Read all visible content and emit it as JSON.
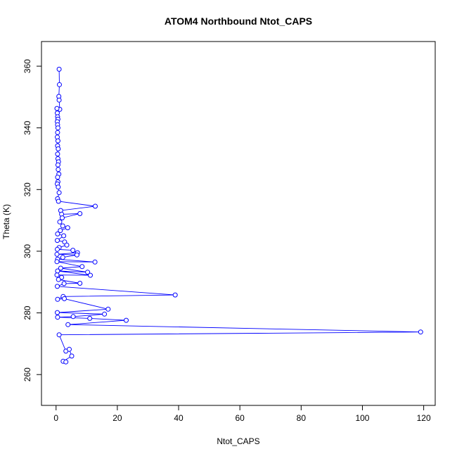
{
  "chart_data": {
    "type": "scatter",
    "title": "ATOM4 Northbound Ntot_CAPS",
    "xlabel": "Ntot_CAPS",
    "ylabel": "Theta (K)",
    "xlim": [
      -4.76,
      123.76
    ],
    "ylim": [
      250,
      368
    ],
    "x_ticks": [
      0,
      20,
      40,
      60,
      80,
      100,
      120
    ],
    "y_ticks": [
      260,
      280,
      300,
      320,
      340,
      360
    ],
    "x_tick_labels": [
      "0",
      "20",
      "40",
      "60",
      "80",
      "100",
      "120"
    ],
    "y_tick_labels": [
      "260",
      "280",
      "300",
      "320",
      "340",
      "360"
    ],
    "grid": false,
    "legend": "none",
    "series": [
      {
        "color": "#0000ff",
        "marker": "open-circle",
        "connected": true,
        "points": [
          [
            1.0,
            359.0
          ],
          [
            1.1,
            354.0
          ],
          [
            0.9,
            350.2
          ],
          [
            1.0,
            349.0
          ],
          [
            1.2,
            346.0
          ],
          [
            0.3,
            346.3
          ],
          [
            0.4,
            344.8
          ],
          [
            0.5,
            343.6
          ],
          [
            0.6,
            342.8
          ],
          [
            0.4,
            342.0
          ],
          [
            0.5,
            341.0
          ],
          [
            0.6,
            340.0
          ],
          [
            0.5,
            338.5
          ],
          [
            0.4,
            337.0
          ],
          [
            0.6,
            335.8
          ],
          [
            0.5,
            334.2
          ],
          [
            0.7,
            333.2
          ],
          [
            0.5,
            331.5
          ],
          [
            0.6,
            330.0
          ],
          [
            0.8,
            329.0
          ],
          [
            0.6,
            328.0
          ],
          [
            0.7,
            326.5
          ],
          [
            0.9,
            325.0
          ],
          [
            0.5,
            324.0
          ],
          [
            0.6,
            322.5
          ],
          [
            0.4,
            321.8
          ],
          [
            0.7,
            320.8
          ],
          [
            1.0,
            319.0
          ],
          [
            0.5,
            317.0
          ],
          [
            0.8,
            316.2
          ],
          [
            12.8,
            314.6
          ],
          [
            1.5,
            313.2
          ],
          [
            1.8,
            312.0
          ],
          [
            7.8,
            312.2
          ],
          [
            2.0,
            310.8
          ],
          [
            1.2,
            309.5
          ],
          [
            2.2,
            308.2
          ],
          [
            3.8,
            307.6
          ],
          [
            1.4,
            306.7
          ],
          [
            0.5,
            305.6
          ],
          [
            2.5,
            305.0
          ],
          [
            0.4,
            303.5
          ],
          [
            2.8,
            303.0
          ],
          [
            3.5,
            302.0
          ],
          [
            1.0,
            301.2
          ],
          [
            0.4,
            300.6
          ],
          [
            5.5,
            300.3
          ],
          [
            7.0,
            299.5
          ],
          [
            0.3,
            299.0
          ],
          [
            6.8,
            298.8
          ],
          [
            2.2,
            298.0
          ],
          [
            0.5,
            297.4
          ],
          [
            12.7,
            296.5
          ],
          [
            0.3,
            296.6
          ],
          [
            8.5,
            295.0
          ],
          [
            1.5,
            294.5
          ],
          [
            10.3,
            293.2
          ],
          [
            0.5,
            293.6
          ],
          [
            11.2,
            292.2
          ],
          [
            0.3,
            292.3
          ],
          [
            1.8,
            291.5
          ],
          [
            0.8,
            290.8
          ],
          [
            7.8,
            289.6
          ],
          [
            2.6,
            289.5
          ],
          [
            0.4,
            288.6
          ],
          [
            38.9,
            285.8
          ],
          [
            2.3,
            285.3
          ],
          [
            0.5,
            284.4
          ],
          [
            2.7,
            284.6
          ],
          [
            17.0,
            281.2
          ],
          [
            0.4,
            280.1
          ],
          [
            15.8,
            279.6
          ],
          [
            5.6,
            278.8
          ],
          [
            0.5,
            278.6
          ],
          [
            11.0,
            278.2
          ],
          [
            22.9,
            277.6
          ],
          [
            3.9,
            276.2
          ],
          [
            119.0,
            273.8
          ],
          [
            1.0,
            272.9
          ],
          [
            3.2,
            267.6
          ],
          [
            4.3,
            268.2
          ],
          [
            5.1,
            266.0
          ],
          [
            2.3,
            264.3
          ],
          [
            3.2,
            264.1
          ]
        ]
      }
    ]
  }
}
